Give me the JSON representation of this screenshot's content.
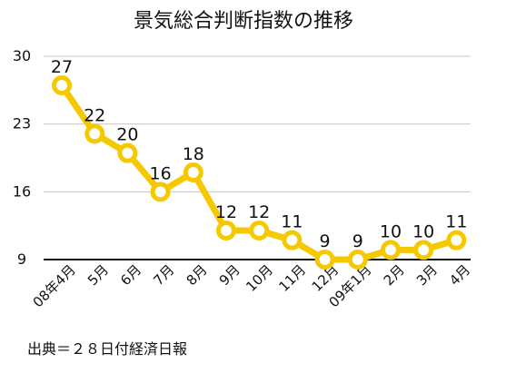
{
  "chart_data": {
    "type": "line",
    "title": "景気総合判断指数の推移",
    "source": "出典＝２８日付経済日報",
    "categories": [
      "08年4月",
      "5月",
      "6月",
      "7月",
      "8月",
      "9月",
      "10月",
      "11月",
      "12月",
      "09年1月",
      "2月",
      "3月",
      "4月"
    ],
    "series": [
      {
        "values": [
          27,
          22,
          20,
          16,
          18,
          12,
          12,
          11,
          9,
          9,
          10,
          10,
          11
        ]
      }
    ],
    "yticks": [
      9,
      16,
      23,
      30
    ],
    "ylim": [
      9,
      30
    ],
    "grid": "horizontal",
    "colors": {
      "line": "#f5c800",
      "marker_fill": "#ffffff",
      "grid": "#c8c8c8",
      "baseline": "#111111"
    }
  }
}
